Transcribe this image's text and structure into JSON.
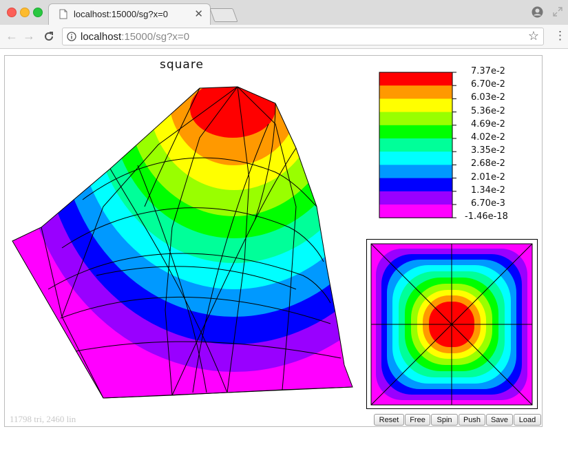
{
  "browser": {
    "tab_title": "localhost:15000/sg?x=0",
    "url_host": "localhost",
    "url_rest": ":15000/sg?x=0"
  },
  "plot": {
    "title": "square",
    "stats": "11798 tri, 2460 lin"
  },
  "legend": {
    "colors": [
      "#ff0000",
      "#ff9900",
      "#ffff00",
      "#99ff00",
      "#00ff00",
      "#00ff99",
      "#00ffff",
      "#0099ff",
      "#0000ff",
      "#9900ff",
      "#ff00ff"
    ],
    "labels": [
      "7.37e-2",
      "6.70e-2",
      "6.03e-2",
      "5.36e-2",
      "4.69e-2",
      "4.02e-2",
      "3.35e-2",
      "2.68e-2",
      "2.01e-2",
      "1.34e-2",
      "6.70e-3",
      "-1.46e-18"
    ]
  },
  "controls": {
    "reset": "Reset",
    "free": "Free",
    "spin": "Spin",
    "push": "Push",
    "save": "Save",
    "load": "Load"
  }
}
